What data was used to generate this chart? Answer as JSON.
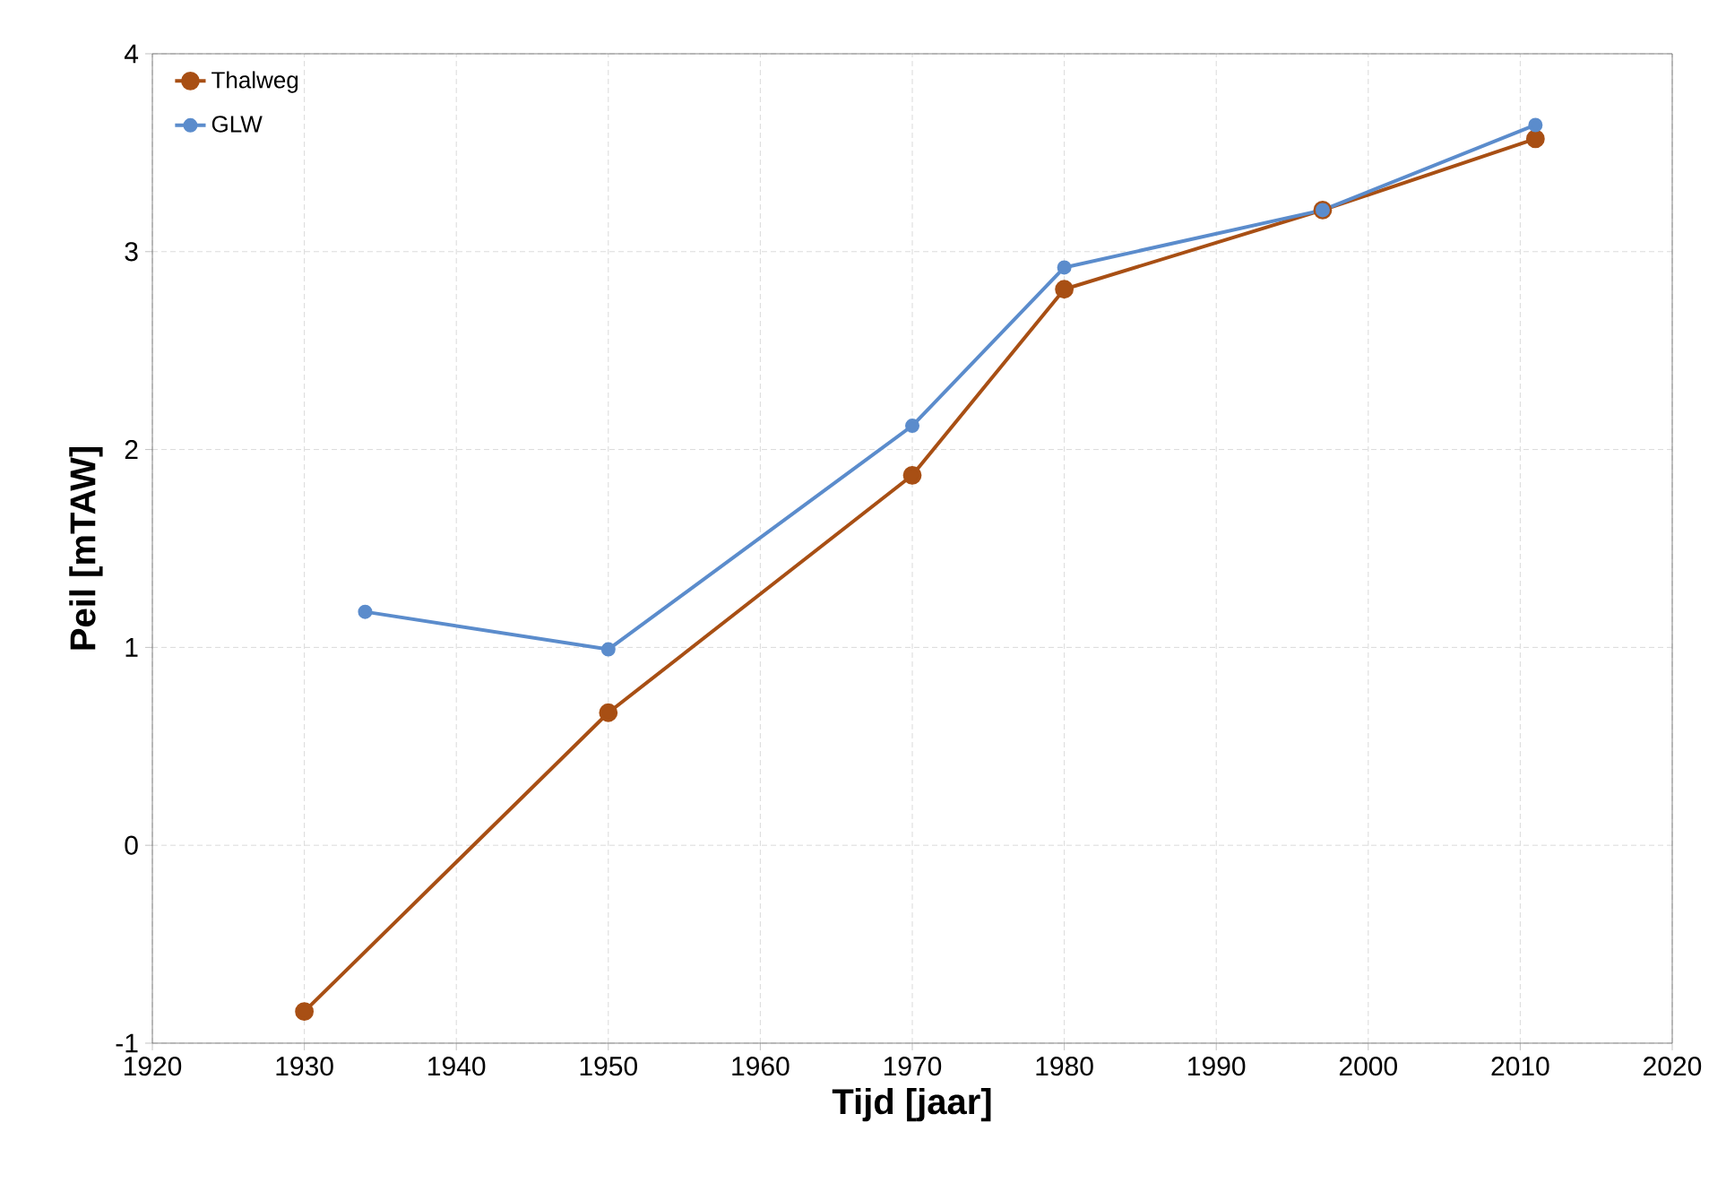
{
  "chart_data": {
    "type": "line",
    "xlabel": "Tijd [jaar]",
    "ylabel": "Peil [mTAW]",
    "xlim": [
      1920,
      2020
    ],
    "xticks": [
      1920,
      1930,
      1940,
      1950,
      1960,
      1970,
      1980,
      1990,
      2000,
      2010,
      2020
    ],
    "ylim": [
      -1,
      4
    ],
    "yticks": [
      -1,
      0,
      1,
      2,
      3,
      4
    ],
    "grid": true,
    "legend": "top left",
    "marker": "circle",
    "line_style": "solid",
    "series": [
      {
        "name": "Thalweg",
        "color": "#a84f14",
        "x": [
          1930,
          1950,
          1970,
          1980,
          1997,
          2011
        ],
        "values": [
          -0.84,
          0.67,
          1.87,
          2.81,
          3.21,
          3.57
        ]
      },
      {
        "name": "GLW",
        "color": "#5b8ccc",
        "x": [
          1934,
          1950,
          1970,
          1980,
          1997,
          2011
        ],
        "values": [
          1.18,
          0.99,
          2.12,
          2.92,
          3.21,
          3.64
        ]
      }
    ]
  }
}
